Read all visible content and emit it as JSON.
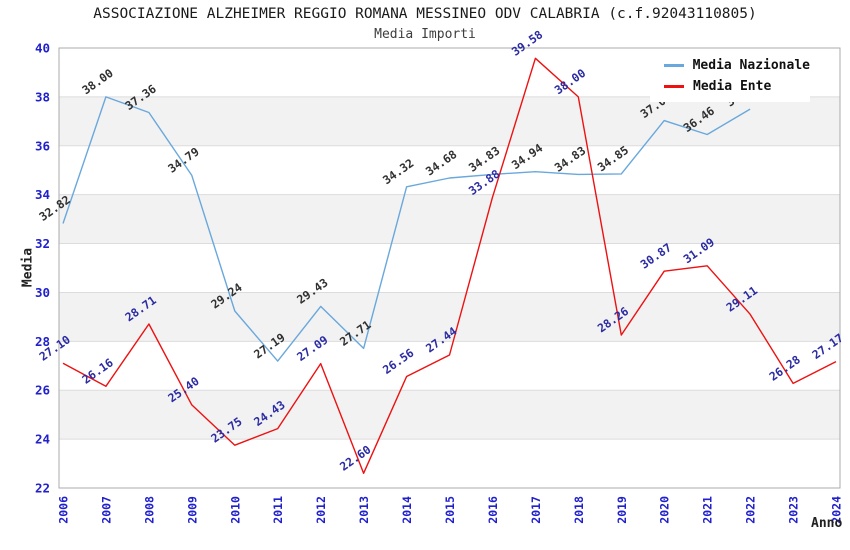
{
  "chart_data": {
    "type": "line",
    "title": "ASSOCIAZIONE ALZHEIMER REGGIO ROMANA MESSINEO ODV CALABRIA (c.f.92043110805)",
    "subtitle": "Media Importi",
    "xlabel": "Anno",
    "ylabel": "Media",
    "x": [
      2006,
      2007,
      2008,
      2009,
      2010,
      2011,
      2012,
      2013,
      2014,
      2015,
      2016,
      2017,
      2018,
      2019,
      2020,
      2021,
      2022,
      2023,
      2024
    ],
    "ylim": [
      22,
      40
    ],
    "ytick_step": 2,
    "grid": true,
    "band_ranges": [
      [
        24,
        26
      ],
      [
        28,
        30
      ],
      [
        32,
        34
      ],
      [
        36,
        38
      ]
    ],
    "legend_position": "top-right",
    "series": [
      {
        "name": "Media Nazionale",
        "color": "#69A8DC",
        "label_color": "#303030",
        "values": [
          32.82,
          38.0,
          37.36,
          34.79,
          29.24,
          27.19,
          29.43,
          27.71,
          34.32,
          34.68,
          34.83,
          34.94,
          34.83,
          34.85,
          37.03,
          36.46,
          37.5,
          null,
          null
        ],
        "labels": [
          "32.82",
          "38.00",
          "37.36",
          "34.79",
          "29.24",
          "27.19",
          "29.43",
          "27.71",
          "34.32",
          "34.68",
          "34.83",
          "34.94",
          "34.83",
          "34.85",
          "37.03",
          "36.46",
          "37.50",
          "",
          ""
        ]
      },
      {
        "name": "Media Ente",
        "color": "#ED1111",
        "label_color": "#2B2BA3",
        "values": [
          27.1,
          26.16,
          28.71,
          25.4,
          23.75,
          24.43,
          27.09,
          22.6,
          26.56,
          27.44,
          33.88,
          39.58,
          38.0,
          28.26,
          30.87,
          31.09,
          29.11,
          26.28,
          27.17
        ],
        "labels": [
          "27.10",
          "26.16",
          "28.71",
          "25.40",
          "23.75",
          "24.43",
          "27.09",
          "22.60",
          "26.56",
          "27.44",
          "33.88",
          "39.58",
          "38.00",
          "28.26",
          "30.87",
          "31.09",
          "29.11",
          "26.28",
          "27.17"
        ]
      }
    ],
    "colors": {
      "band": "#F2F2F2",
      "grid": "#DCDCDC",
      "border": "#ABABAB",
      "tick_label": "#2020CC"
    }
  }
}
